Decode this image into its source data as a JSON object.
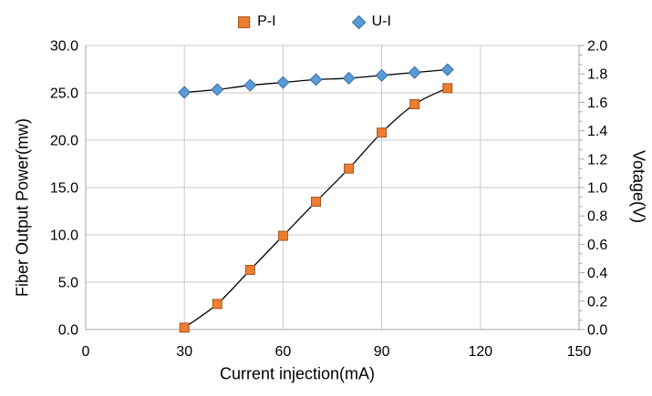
{
  "chart_data": {
    "type": "line",
    "title": "",
    "x": [
      30,
      40,
      50,
      60,
      70,
      80,
      90,
      100,
      110
    ],
    "series": [
      {
        "name": "P-I",
        "axis": "left",
        "marker": "square",
        "marker_fill": "#ED7D31",
        "marker_stroke": "#A5561E",
        "line_color": "#000000",
        "values": [
          0.2,
          2.7,
          6.3,
          9.9,
          13.5,
          17.0,
          20.8,
          23.8,
          25.5
        ]
      },
      {
        "name": "U-I",
        "axis": "right",
        "marker": "diamond",
        "marker_fill": "#5B9BD5",
        "marker_stroke": "#3A6FA8",
        "line_color": "#000000",
        "values": [
          1.67,
          1.69,
          1.72,
          1.74,
          1.76,
          1.77,
          1.79,
          1.81,
          1.83
        ]
      }
    ],
    "xlabel": "Current injection(mA)",
    "ylabel_left": "Fiber Output Power(mw)",
    "ylabel_right": "Votage(V)",
    "xlim": [
      0,
      150
    ],
    "xticks": [
      "0",
      "30",
      "60",
      "90",
      "120",
      "150"
    ],
    "ylim_left": [
      0,
      30
    ],
    "yticks_left": [
      "0.0",
      "5.0",
      "10.0",
      "15.0",
      "20.0",
      "25.0",
      "30.0"
    ],
    "ylim_right": [
      0,
      2
    ],
    "yticks_right": [
      "0.0",
      "0.2",
      "0.4",
      "0.6",
      "0.8",
      "1.0",
      "1.2",
      "1.4",
      "1.6",
      "1.8",
      "2.0"
    ],
    "grid": true,
    "legend_position": "top-center",
    "line_smoothing": true,
    "colors": {
      "gridline": "#C9C9C9",
      "axis_line": "#A6A6A6",
      "text": "#000000",
      "background": "#FFFFFF"
    }
  }
}
